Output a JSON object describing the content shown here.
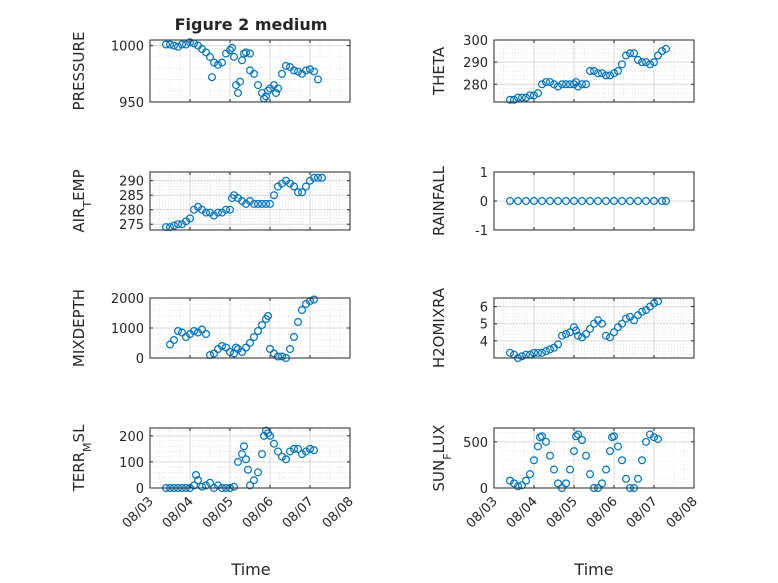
{
  "figure": {
    "title": "Figure 2 medium",
    "xlabel": "Time",
    "marker_color": "#0072BD",
    "axis_color": "#262626",
    "grid_color": "#d9d9d9",
    "xticklabels": [
      "08/03",
      "08/04",
      "08/05",
      "08/06",
      "08/07",
      "08/08"
    ]
  },
  "chart_data": [
    {
      "type": "scatter",
      "ylabel": "PRESSURE",
      "x_days": [
        3,
        8
      ],
      "ylim": [
        950,
        1005
      ],
      "yticks": [
        950,
        1000
      ],
      "yticklabels": [
        "950",
        "1000"
      ],
      "minor_grid": true,
      "xticklabels_shown": false,
      "points": [
        [
          3.4,
          1001
        ],
        [
          3.5,
          1001
        ],
        [
          3.6,
          1000
        ],
        [
          3.7,
          999
        ],
        [
          3.8,
          1001
        ],
        [
          3.9,
          1001
        ],
        [
          4.0,
          1003
        ],
        [
          4.1,
          1002
        ],
        [
          4.2,
          1000
        ],
        [
          4.3,
          997
        ],
        [
          4.4,
          994
        ],
        [
          4.5,
          990
        ],
        [
          4.55,
          972
        ],
        [
          4.6,
          985
        ],
        [
          4.7,
          983
        ],
        [
          4.8,
          985
        ],
        [
          4.9,
          993
        ],
        [
          5.0,
          996
        ],
        [
          5.05,
          998
        ],
        [
          5.1,
          990
        ],
        [
          5.15,
          965
        ],
        [
          5.2,
          958
        ],
        [
          5.25,
          968
        ],
        [
          5.3,
          987
        ],
        [
          5.35,
          993
        ],
        [
          5.4,
          994
        ],
        [
          5.5,
          993
        ],
        [
          5.5,
          978
        ],
        [
          5.6,
          975
        ],
        [
          5.7,
          965
        ],
        [
          5.8,
          958
        ],
        [
          5.85,
          953
        ],
        [
          5.9,
          955
        ],
        [
          5.95,
          960
        ],
        [
          6.0,
          962
        ],
        [
          6.1,
          965
        ],
        [
          6.15,
          958
        ],
        [
          6.2,
          962
        ],
        [
          6.3,
          975
        ],
        [
          6.4,
          982
        ],
        [
          6.5,
          981
        ],
        [
          6.6,
          978
        ],
        [
          6.7,
          977
        ],
        [
          6.8,
          975
        ],
        [
          6.9,
          978
        ],
        [
          7.0,
          979
        ],
        [
          7.1,
          977
        ],
        [
          7.2,
          970
        ]
      ]
    },
    {
      "type": "scatter",
      "ylabel": "THETA",
      "x_days": [
        3,
        8
      ],
      "ylim": [
        272,
        300
      ],
      "yticks": [
        280,
        290,
        300
      ],
      "yticklabels": [
        "280",
        "290",
        "300"
      ],
      "minor_grid": true,
      "xticklabels_shown": false,
      "points": [
        [
          3.4,
          273
        ],
        [
          3.5,
          273
        ],
        [
          3.6,
          274
        ],
        [
          3.7,
          274
        ],
        [
          3.8,
          274
        ],
        [
          3.9,
          275
        ],
        [
          4.0,
          275
        ],
        [
          4.1,
          276
        ],
        [
          4.2,
          280
        ],
        [
          4.3,
          281
        ],
        [
          4.4,
          281
        ],
        [
          4.5,
          280
        ],
        [
          4.6,
          279
        ],
        [
          4.7,
          280
        ],
        [
          4.8,
          280
        ],
        [
          4.9,
          280
        ],
        [
          5.0,
          280
        ],
        [
          5.05,
          281
        ],
        [
          5.1,
          279
        ],
        [
          5.2,
          280
        ],
        [
          5.3,
          280
        ],
        [
          5.4,
          286
        ],
        [
          5.5,
          286
        ],
        [
          5.6,
          285
        ],
        [
          5.7,
          285
        ],
        [
          5.8,
          284
        ],
        [
          5.9,
          284
        ],
        [
          6.0,
          285
        ],
        [
          6.1,
          286
        ],
        [
          6.2,
          289
        ],
        [
          6.3,
          293
        ],
        [
          6.4,
          294
        ],
        [
          6.5,
          294
        ],
        [
          6.6,
          291
        ],
        [
          6.7,
          290
        ],
        [
          6.8,
          290
        ],
        [
          6.9,
          289
        ],
        [
          7.0,
          290
        ],
        [
          7.1,
          293
        ],
        [
          7.2,
          295
        ],
        [
          7.3,
          296
        ]
      ]
    },
    {
      "type": "scatter",
      "ylabel": "AIR_TEMP",
      "x_days": [
        3,
        8
      ],
      "ylim": [
        273,
        293
      ],
      "yticks": [
        275,
        280,
        285,
        290
      ],
      "yticklabels": [
        "275",
        "280",
        "285",
        "290"
      ],
      "minor_grid": true,
      "xticklabels_shown": false,
      "points": [
        [
          3.4,
          274
        ],
        [
          3.5,
          274
        ],
        [
          3.6,
          274.5
        ],
        [
          3.7,
          275
        ],
        [
          3.8,
          275
        ],
        [
          3.9,
          276
        ],
        [
          4.0,
          277
        ],
        [
          4.1,
          280
        ],
        [
          4.2,
          281
        ],
        [
          4.3,
          280
        ],
        [
          4.4,
          279
        ],
        [
          4.5,
          279
        ],
        [
          4.6,
          278
        ],
        [
          4.7,
          279
        ],
        [
          4.8,
          279
        ],
        [
          4.9,
          280
        ],
        [
          5.0,
          280
        ],
        [
          5.05,
          284
        ],
        [
          5.1,
          285
        ],
        [
          5.2,
          284
        ],
        [
          5.3,
          283
        ],
        [
          5.4,
          282
        ],
        [
          5.5,
          283
        ],
        [
          5.6,
          282
        ],
        [
          5.7,
          282
        ],
        [
          5.8,
          282
        ],
        [
          5.9,
          282
        ],
        [
          6.0,
          282
        ],
        [
          6.1,
          285
        ],
        [
          6.2,
          288
        ],
        [
          6.3,
          289
        ],
        [
          6.4,
          290
        ],
        [
          6.5,
          289
        ],
        [
          6.6,
          288
        ],
        [
          6.7,
          286
        ],
        [
          6.8,
          286
        ],
        [
          6.9,
          288
        ],
        [
          7.0,
          290
        ],
        [
          7.1,
          291
        ],
        [
          7.2,
          291
        ],
        [
          7.3,
          291
        ]
      ]
    },
    {
      "type": "scatter",
      "ylabel": "RAINFALL",
      "x_days": [
        3,
        8
      ],
      "ylim": [
        -1,
        1
      ],
      "yticks": [
        -1,
        0,
        1
      ],
      "yticklabels": [
        "-1",
        "0",
        "1"
      ],
      "minor_grid": false,
      "xticklabels_shown": false,
      "points": [
        [
          3.4,
          0
        ],
        [
          3.6,
          0
        ],
        [
          3.8,
          0
        ],
        [
          4.0,
          0
        ],
        [
          4.2,
          0
        ],
        [
          4.4,
          0
        ],
        [
          4.6,
          0
        ],
        [
          4.8,
          0
        ],
        [
          5.0,
          0
        ],
        [
          5.2,
          0
        ],
        [
          5.4,
          0
        ],
        [
          5.6,
          0
        ],
        [
          5.8,
          0
        ],
        [
          6.0,
          0
        ],
        [
          6.2,
          0
        ],
        [
          6.4,
          0
        ],
        [
          6.6,
          0
        ],
        [
          6.8,
          0
        ],
        [
          7.0,
          0
        ],
        [
          7.2,
          0
        ],
        [
          7.3,
          0
        ]
      ]
    },
    {
      "type": "scatter",
      "ylabel": "MIXDEPTH",
      "x_days": [
        3,
        8
      ],
      "ylim": [
        0,
        2000
      ],
      "yticks": [
        0,
        1000,
        2000
      ],
      "yticklabels": [
        "0",
        "1000",
        "2000"
      ],
      "minor_grid": true,
      "xticklabels_shown": false,
      "points": [
        [
          3.5,
          450
        ],
        [
          3.6,
          600
        ],
        [
          3.7,
          900
        ],
        [
          3.8,
          850
        ],
        [
          3.9,
          700
        ],
        [
          4.0,
          800
        ],
        [
          4.1,
          900
        ],
        [
          4.2,
          850
        ],
        [
          4.3,
          950
        ],
        [
          4.4,
          800
        ],
        [
          4.5,
          100
        ],
        [
          4.6,
          150
        ],
        [
          4.7,
          300
        ],
        [
          4.8,
          400
        ],
        [
          4.9,
          350
        ],
        [
          5.0,
          200
        ],
        [
          5.1,
          150
        ],
        [
          5.15,
          350
        ],
        [
          5.2,
          300
        ],
        [
          5.3,
          200
        ],
        [
          5.4,
          350
        ],
        [
          5.5,
          500
        ],
        [
          5.6,
          700
        ],
        [
          5.7,
          900
        ],
        [
          5.8,
          1100
        ],
        [
          5.9,
          1300
        ],
        [
          5.95,
          1400
        ],
        [
          6.0,
          300
        ],
        [
          6.1,
          150
        ],
        [
          6.2,
          50
        ],
        [
          6.3,
          50
        ],
        [
          6.4,
          0
        ],
        [
          6.5,
          300
        ],
        [
          6.6,
          700
        ],
        [
          6.7,
          1200
        ],
        [
          6.8,
          1600
        ],
        [
          6.9,
          1800
        ],
        [
          7.0,
          1900
        ],
        [
          7.1,
          1950
        ]
      ]
    },
    {
      "type": "scatter",
      "ylabel": "H2OMIXRA",
      "x_days": [
        3,
        8
      ],
      "ylim": [
        3,
        6.5
      ],
      "yticks": [
        4,
        5,
        6
      ],
      "yticklabels": [
        "4",
        "5",
        "6"
      ],
      "minor_grid": true,
      "xticklabels_shown": false,
      "points": [
        [
          3.4,
          3.3
        ],
        [
          3.5,
          3.2
        ],
        [
          3.6,
          3.0
        ],
        [
          3.7,
          3.1
        ],
        [
          3.8,
          3.2
        ],
        [
          3.9,
          3.2
        ],
        [
          4.0,
          3.3
        ],
        [
          4.1,
          3.3
        ],
        [
          4.2,
          3.3
        ],
        [
          4.3,
          3.4
        ],
        [
          4.4,
          3.5
        ],
        [
          4.5,
          3.6
        ],
        [
          4.6,
          3.8
        ],
        [
          4.7,
          4.3
        ],
        [
          4.8,
          4.4
        ],
        [
          4.9,
          4.5
        ],
        [
          5.0,
          4.8
        ],
        [
          5.05,
          4.6
        ],
        [
          5.1,
          4.3
        ],
        [
          5.2,
          4.2
        ],
        [
          5.3,
          4.4
        ],
        [
          5.4,
          4.7
        ],
        [
          5.5,
          5.0
        ],
        [
          5.6,
          5.2
        ],
        [
          5.7,
          5.0
        ],
        [
          5.8,
          4.3
        ],
        [
          5.9,
          4.2
        ],
        [
          6.0,
          4.5
        ],
        [
          6.1,
          4.8
        ],
        [
          6.2,
          5.0
        ],
        [
          6.3,
          5.3
        ],
        [
          6.4,
          5.4
        ],
        [
          6.5,
          5.2
        ],
        [
          6.6,
          5.5
        ],
        [
          6.7,
          5.7
        ],
        [
          6.8,
          5.8
        ],
        [
          6.9,
          6.0
        ],
        [
          7.0,
          6.2
        ],
        [
          7.1,
          6.3
        ]
      ]
    },
    {
      "type": "scatter",
      "ylabel": "TERR_MSL",
      "x_days": [
        3,
        8
      ],
      "ylim": [
        0,
        230
      ],
      "yticks": [
        0,
        100,
        200
      ],
      "yticklabels": [
        "0",
        "100",
        "200"
      ],
      "minor_grid": true,
      "xticklabels_shown": true,
      "points": [
        [
          3.4,
          0
        ],
        [
          3.5,
          0
        ],
        [
          3.6,
          0
        ],
        [
          3.7,
          0
        ],
        [
          3.8,
          0
        ],
        [
          3.9,
          0
        ],
        [
          4.0,
          0
        ],
        [
          4.1,
          10
        ],
        [
          4.15,
          50
        ],
        [
          4.2,
          30
        ],
        [
          4.3,
          5
        ],
        [
          4.4,
          10
        ],
        [
          4.5,
          20
        ],
        [
          4.6,
          0
        ],
        [
          4.7,
          10
        ],
        [
          4.8,
          0
        ],
        [
          4.9,
          0
        ],
        [
          5.0,
          0
        ],
        [
          5.1,
          5
        ],
        [
          5.2,
          100
        ],
        [
          5.3,
          130
        ],
        [
          5.35,
          160
        ],
        [
          5.4,
          110
        ],
        [
          5.45,
          70
        ],
        [
          5.5,
          10
        ],
        [
          5.6,
          30
        ],
        [
          5.7,
          60
        ],
        [
          5.8,
          130
        ],
        [
          5.85,
          200
        ],
        [
          5.9,
          220
        ],
        [
          5.95,
          210
        ],
        [
          6.0,
          200
        ],
        [
          6.1,
          170
        ],
        [
          6.2,
          140
        ],
        [
          6.3,
          120
        ],
        [
          6.4,
          110
        ],
        [
          6.5,
          140
        ],
        [
          6.6,
          150
        ],
        [
          6.7,
          150
        ],
        [
          6.8,
          130
        ],
        [
          6.9,
          140
        ],
        [
          7.0,
          150
        ],
        [
          7.1,
          145
        ]
      ]
    },
    {
      "type": "scatter",
      "ylabel": "SUN_FLUX",
      "x_days": [
        3,
        8
      ],
      "ylim": [
        0,
        650
      ],
      "yticks": [
        0,
        500
      ],
      "yticklabels": [
        "0",
        "500"
      ],
      "minor_grid": true,
      "xticklabels_shown": true,
      "points": [
        [
          3.4,
          80
        ],
        [
          3.5,
          50
        ],
        [
          3.6,
          20
        ],
        [
          3.7,
          30
        ],
        [
          3.8,
          80
        ],
        [
          3.9,
          150
        ],
        [
          4.0,
          300
        ],
        [
          4.1,
          450
        ],
        [
          4.15,
          550
        ],
        [
          4.2,
          560
        ],
        [
          4.3,
          500
        ],
        [
          4.4,
          350
        ],
        [
          4.5,
          200
        ],
        [
          4.6,
          50
        ],
        [
          4.7,
          0
        ],
        [
          4.8,
          50
        ],
        [
          4.9,
          200
        ],
        [
          5.0,
          400
        ],
        [
          5.05,
          560
        ],
        [
          5.1,
          580
        ],
        [
          5.2,
          520
        ],
        [
          5.3,
          350
        ],
        [
          5.4,
          150
        ],
        [
          5.5,
          0
        ],
        [
          5.6,
          0
        ],
        [
          5.7,
          50
        ],
        [
          5.8,
          200
        ],
        [
          5.9,
          400
        ],
        [
          5.95,
          550
        ],
        [
          6.0,
          560
        ],
        [
          6.1,
          450
        ],
        [
          6.2,
          300
        ],
        [
          6.3,
          100
        ],
        [
          6.4,
          0
        ],
        [
          6.5,
          0
        ],
        [
          6.6,
          100
        ],
        [
          6.7,
          300
        ],
        [
          6.8,
          500
        ],
        [
          6.9,
          580
        ],
        [
          7.0,
          550
        ],
        [
          7.1,
          530
        ]
      ]
    }
  ]
}
